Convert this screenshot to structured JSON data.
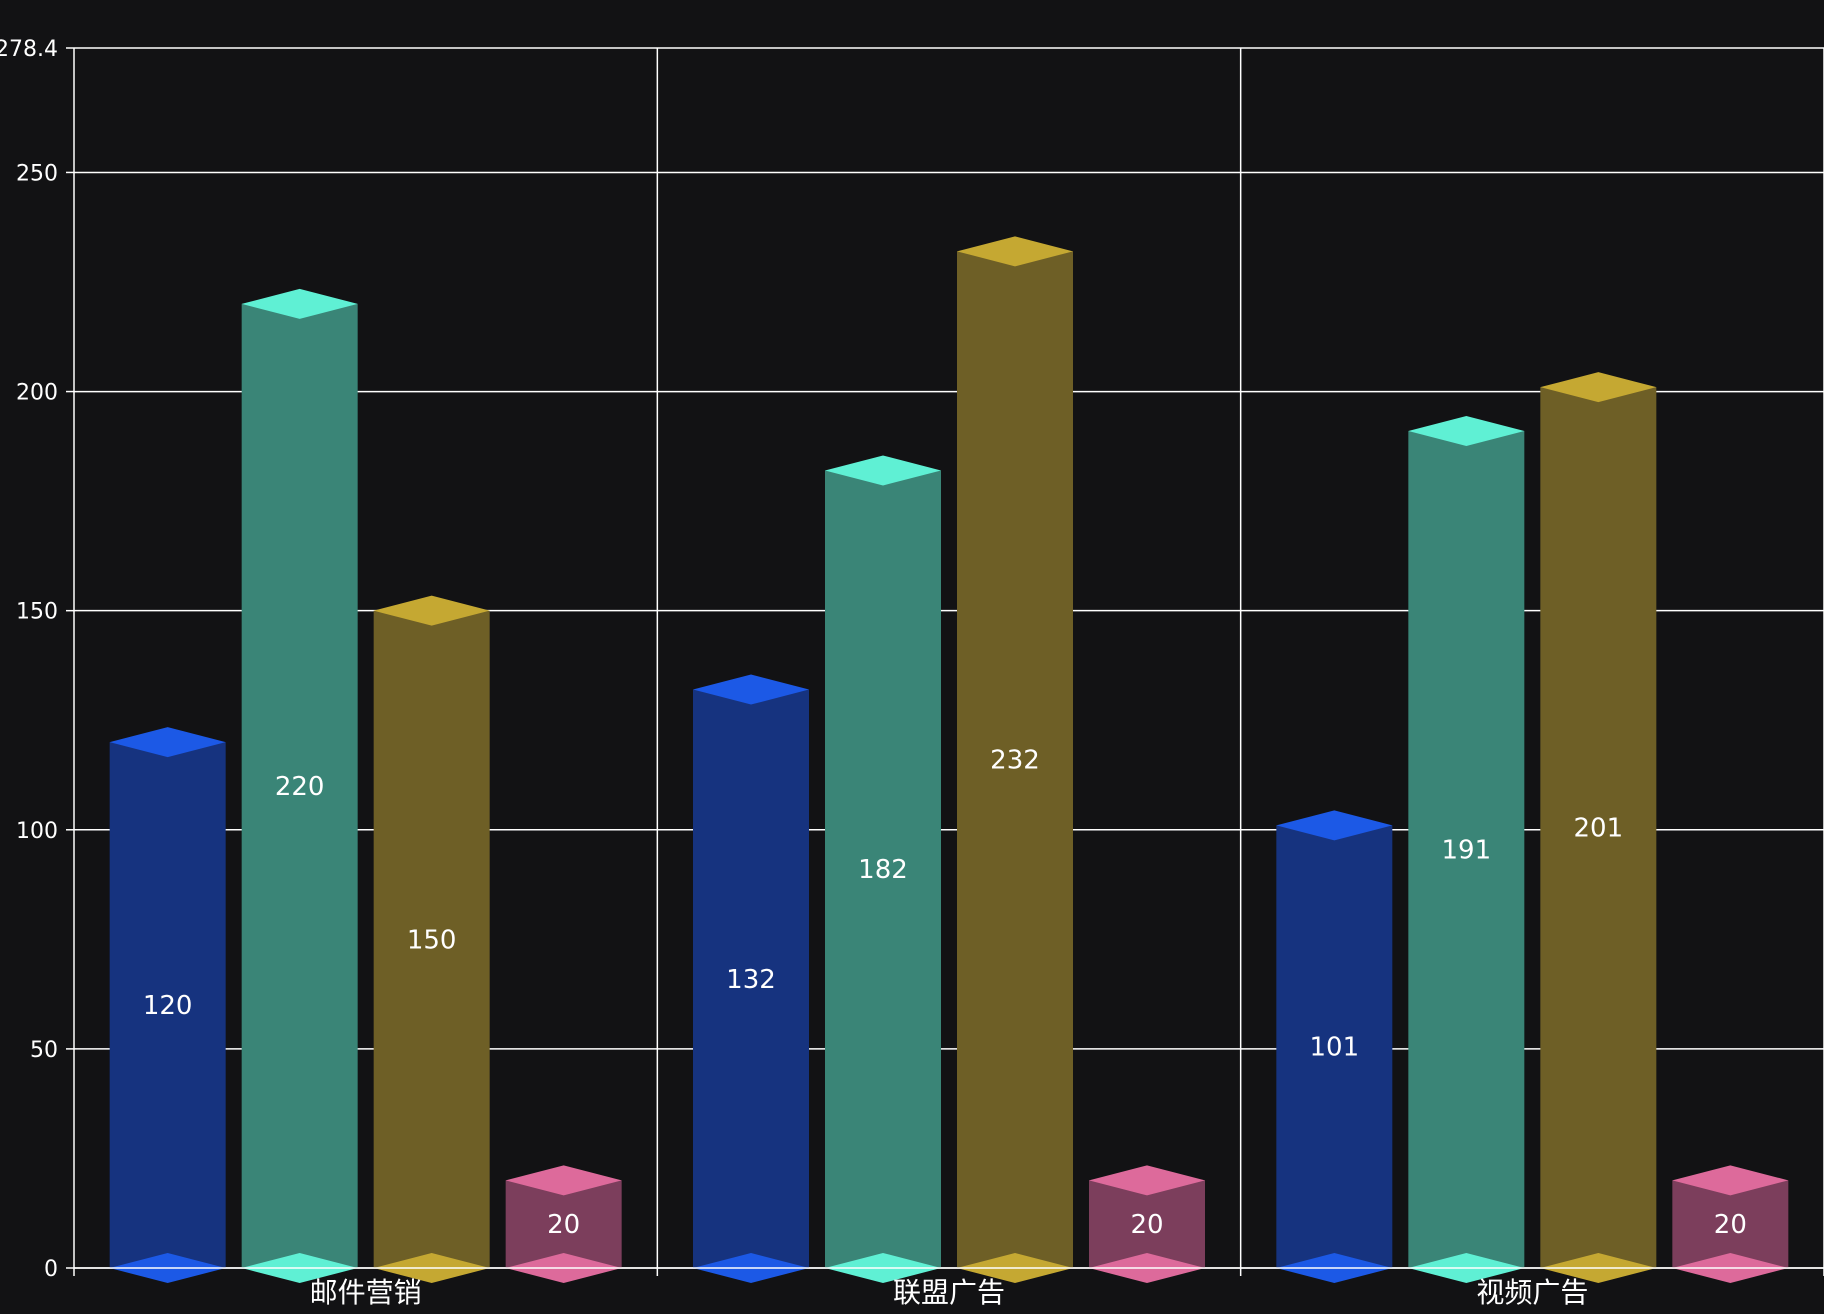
{
  "chart_data": {
    "type": "bar",
    "title": "",
    "xlabel": "",
    "ylabel": "",
    "categories": [
      "邮件营销",
      "联盟广告",
      "视频广告"
    ],
    "ylim": [
      0,
      278.4
    ],
    "yticks": [
      "0",
      "50",
      "100",
      "150",
      "200",
      "250",
      "278.4"
    ],
    "grid": true,
    "style": "3d-cylinder-bars",
    "series": [
      {
        "values": [
          120,
          132,
          101
        ],
        "body_color": "#16337f",
        "cap_color": "#1c59e6"
      },
      {
        "values": [
          220,
          182,
          191
        ],
        "body_color": "#3a8577",
        "cap_color": "#5ff0d4"
      },
      {
        "values": [
          150,
          232,
          201
        ],
        "body_color": "#6e5f26",
        "cap_color": "#c5a832"
      },
      {
        "values": [
          20,
          20,
          20
        ],
        "body_color": "#7c3e5c",
        "cap_color": "#dd6a9b"
      }
    ],
    "data_labels": [
      [
        "120",
        "132",
        "101"
      ],
      [
        "220",
        "182",
        "191"
      ],
      [
        "150",
        "232",
        "201"
      ],
      [
        "20",
        "20",
        "20"
      ]
    ],
    "colors": {
      "background": "#121214",
      "grid": "#ffffff",
      "text": "#ffffff"
    }
  }
}
